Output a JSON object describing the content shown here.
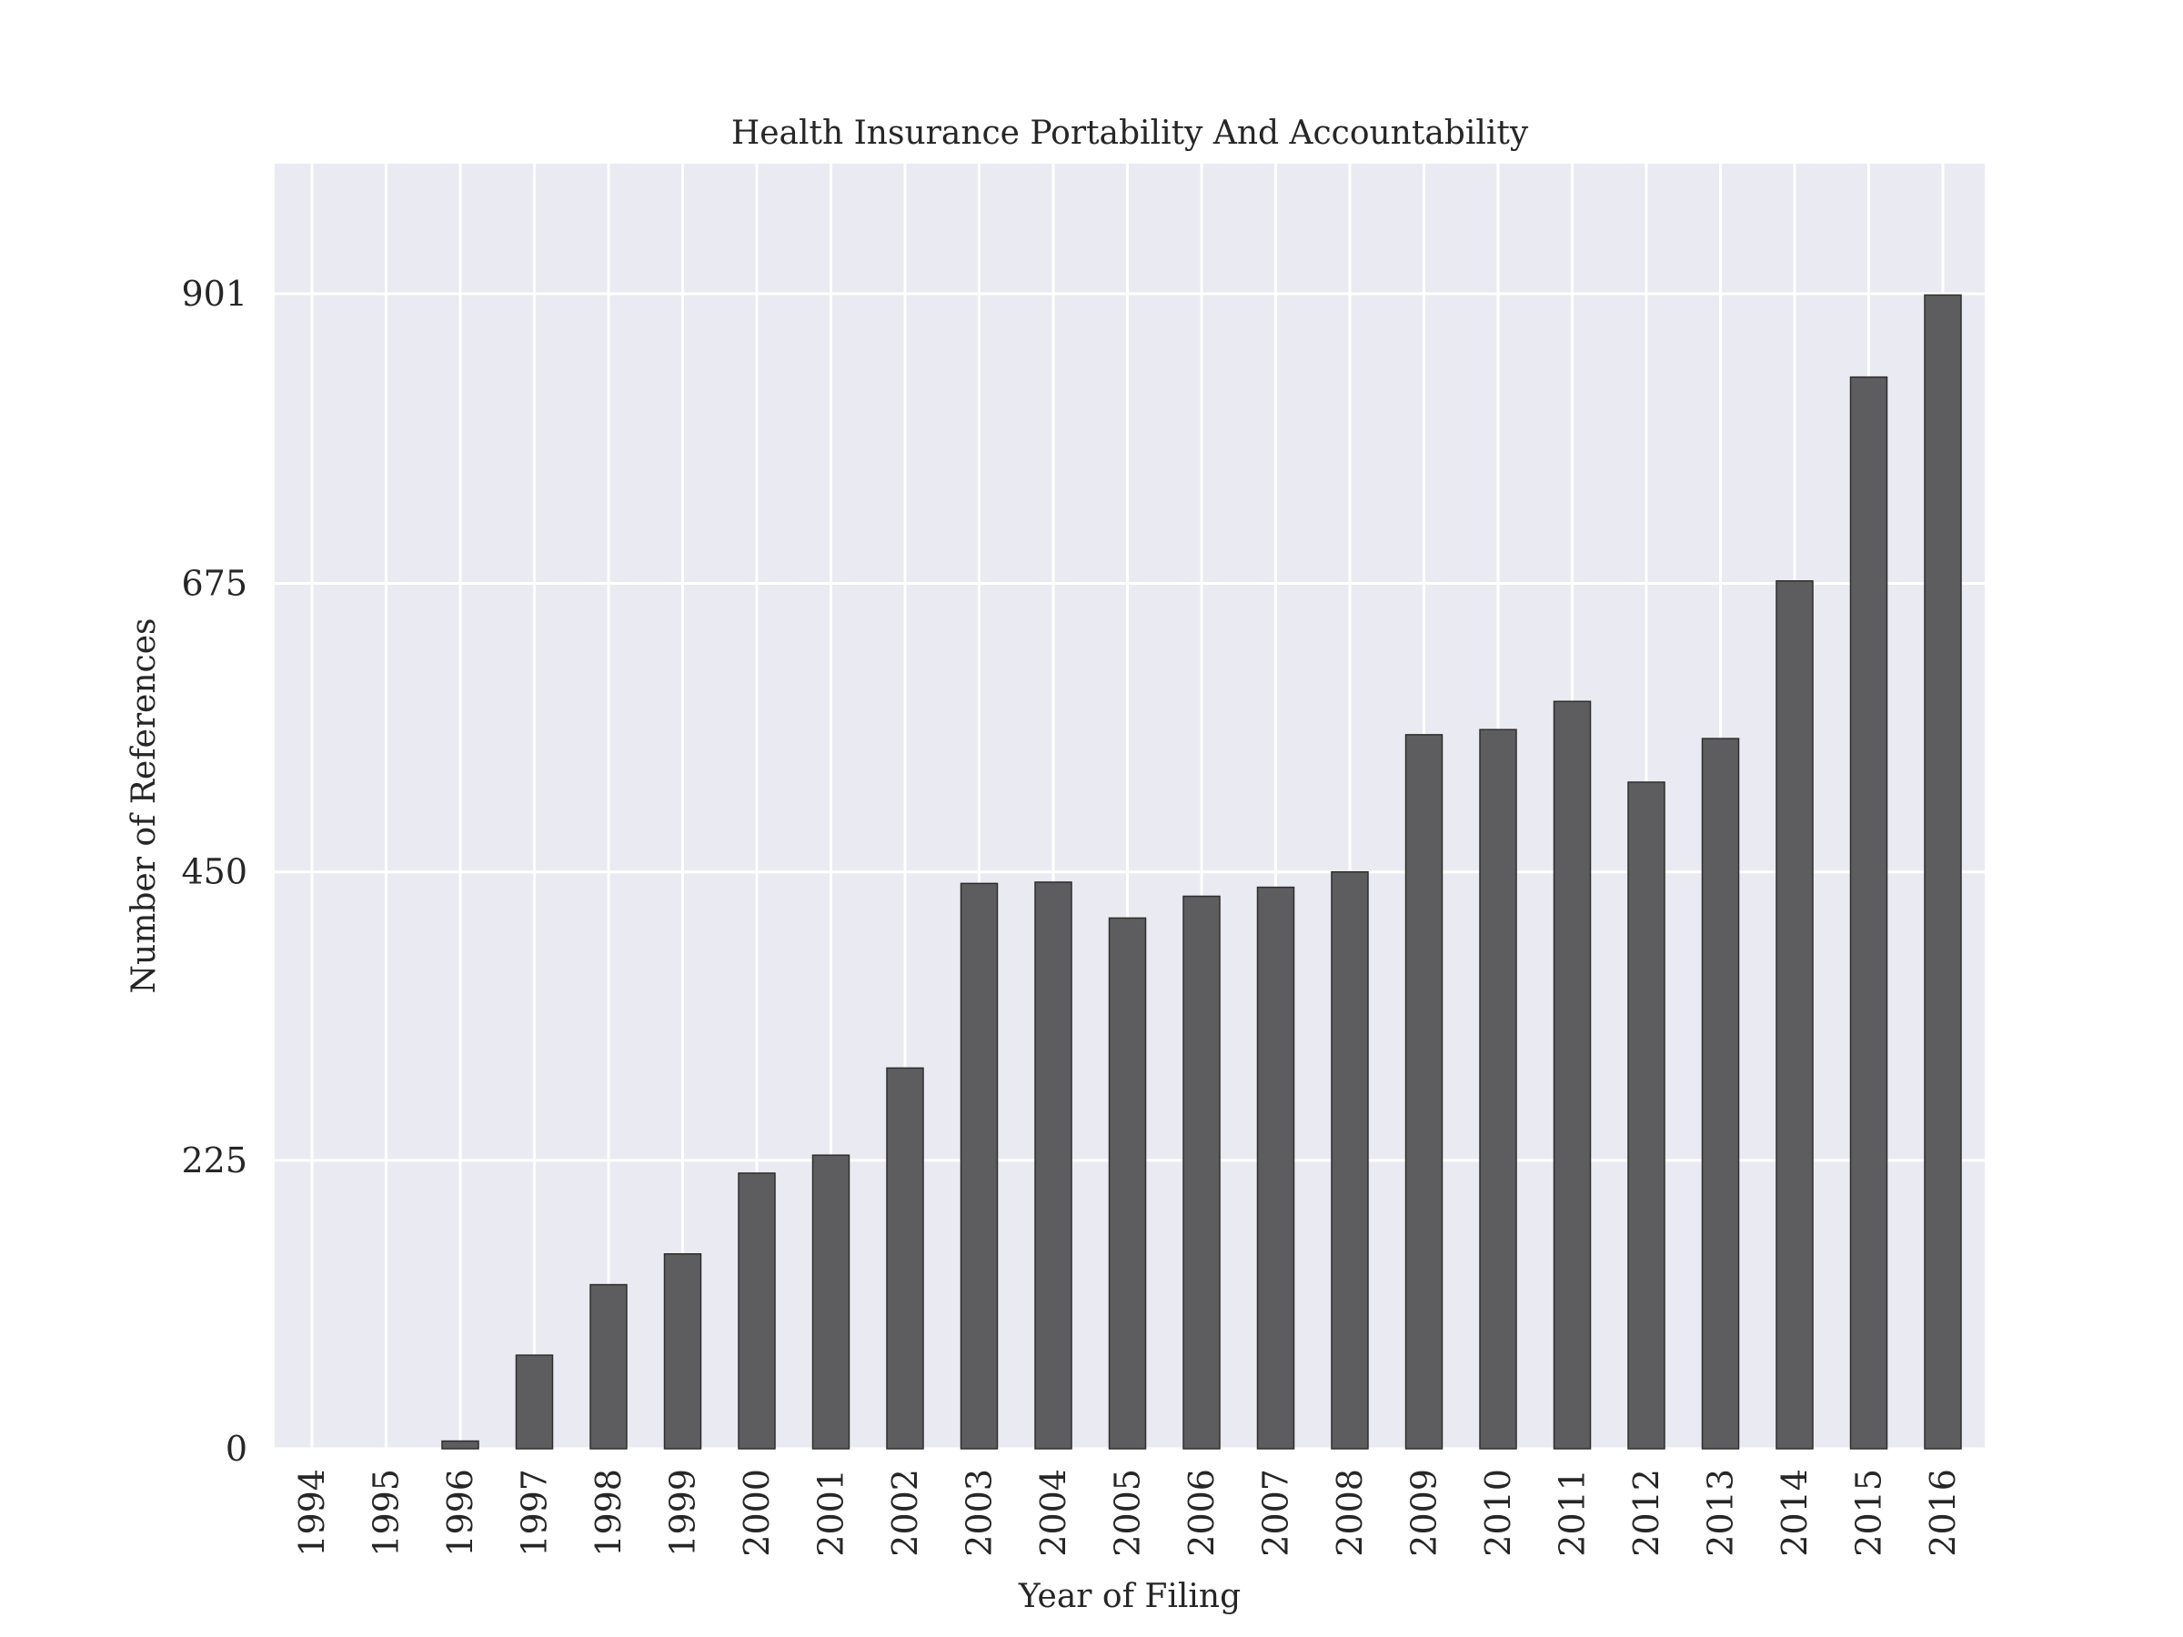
{
  "chart_data": {
    "type": "bar",
    "title": "Health Insurance Portability And Accountability",
    "xlabel": "Year of Filing",
    "ylabel": "Number of References",
    "categories": [
      "1994",
      "1995",
      "1996",
      "1997",
      "1998",
      "1999",
      "2000",
      "2001",
      "2002",
      "2003",
      "2004",
      "2005",
      "2006",
      "2007",
      "2008",
      "2009",
      "2010",
      "2011",
      "2012",
      "2013",
      "2014",
      "2015",
      "2016"
    ],
    "values": [
      0,
      0,
      6,
      73,
      128,
      152,
      215,
      229,
      297,
      441,
      442,
      414,
      431,
      438,
      450,
      557,
      561,
      583,
      520,
      554,
      677,
      836,
      900
    ],
    "yticks": [
      0,
      225,
      450,
      675,
      901
    ],
    "ylim": [
      0,
      1000
    ],
    "grid": true,
    "legend": "none",
    "colors": {
      "bar": "#5d5d5f",
      "bar_edge": "#2e2e2e",
      "plot_background": "#eaeaf2",
      "grid": "#ffffff",
      "text": "#262626"
    }
  }
}
